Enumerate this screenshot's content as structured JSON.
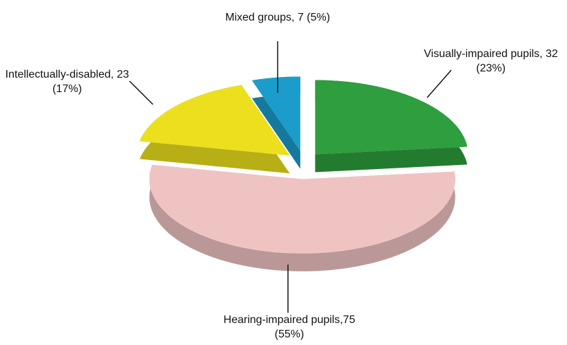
{
  "chart_data": {
    "type": "pie3d",
    "values": [
      32,
      75,
      23,
      7
    ],
    "value_labels": [
      "Visually-impaired pupils, 32 (23%)",
      "Hearing-impaired pupils,75 (55%)",
      "Intellectually-disabled, 23 (17%)",
      "Mixed groups, 7 (5%)"
    ],
    "colors": [
      "#2e9e3e",
      "#f0c3c3",
      "#ece01e",
      "#1c9ccb"
    ],
    "exploded": true
  }
}
